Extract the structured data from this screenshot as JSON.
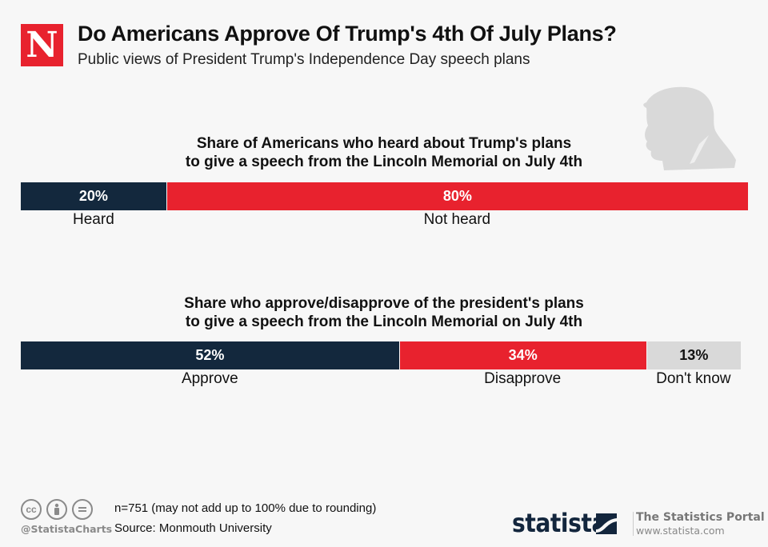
{
  "header": {
    "logo_letter": "N",
    "title": "Do Americans Approve Of Trump's 4th Of July Plans?",
    "subtitle": "Public views of President Trump's Independence Day speech plans"
  },
  "colors": {
    "navy": "#13283d",
    "red": "#e8222e",
    "gray": "#d9d9d9",
    "background": "#f7f7f7"
  },
  "chart_data": [
    {
      "type": "bar",
      "orientation": "horizontal-stacked-100",
      "title_lines": [
        "Share of Americans who heard about Trump's plans",
        "to give a speech from the Lincoln Memorial on July 4th"
      ],
      "categories": [
        "Heard",
        "Not heard"
      ],
      "values": [
        20,
        80
      ],
      "value_labels": [
        "20%",
        "80%"
      ],
      "colors": [
        "#13283d",
        "#e8222e"
      ],
      "label_colors": [
        "#ffffff",
        "#ffffff"
      ]
    },
    {
      "type": "bar",
      "orientation": "horizontal-stacked-100",
      "title_lines": [
        "Share who approve/disapprove of the president's plans",
        "to give a speech from the Lincoln Memorial on July 4th"
      ],
      "categories": [
        "Approve",
        "Disapprove",
        "Don't know"
      ],
      "values": [
        52,
        34,
        13
      ],
      "value_labels": [
        "52%",
        "34%",
        "13%"
      ],
      "colors": [
        "#13283d",
        "#e8222e",
        "#d9d9d9"
      ],
      "label_colors": [
        "#ffffff",
        "#ffffff",
        "#111111"
      ]
    }
  ],
  "footer": {
    "handle": "@StatistaCharts",
    "note": "n=751 (may not add up to 100% due to rounding)",
    "source": "Source: Monmouth University",
    "brand": "statista",
    "portal_title": "The Statistics Portal",
    "portal_url": "www.statista.com",
    "license_icons": [
      "cc-icon",
      "attribution-icon",
      "no-derivatives-icon"
    ]
  }
}
